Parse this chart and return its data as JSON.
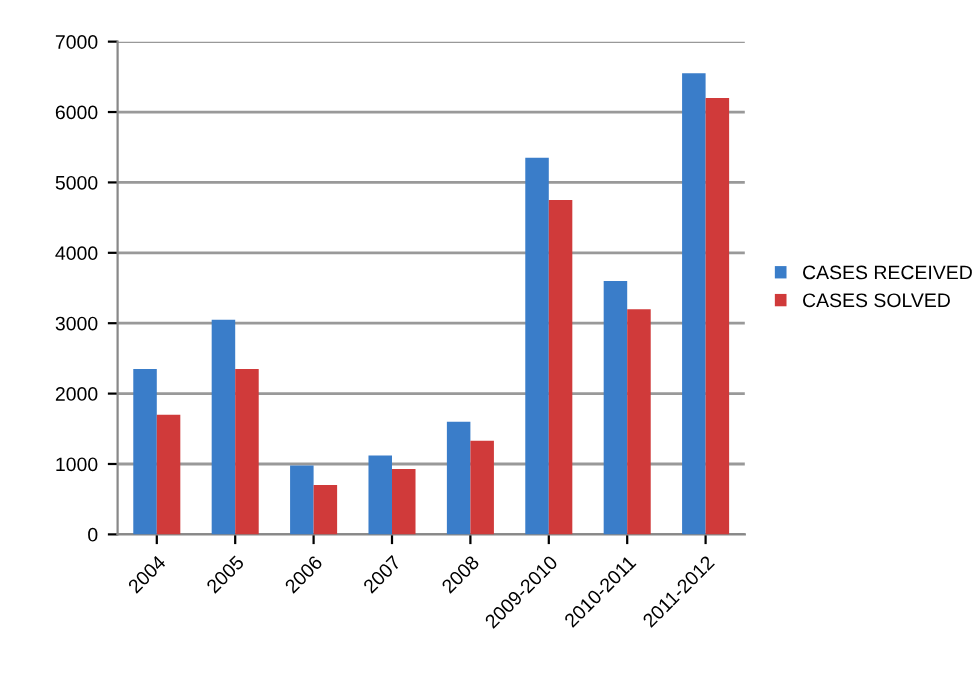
{
  "chart_data": {
    "type": "bar",
    "categories": [
      "2004",
      "2005",
      "2006",
      "2007",
      "2008",
      "2009-2010",
      "2010-2011",
      "2011-2012"
    ],
    "series": [
      {
        "name": "CASES RECEIVED",
        "color": "#3a7dc9",
        "values": [
          2350,
          3050,
          980,
          1120,
          1600,
          5350,
          3600,
          6550
        ]
      },
      {
        "name": "CASES SOLVED",
        "color": "#d03a3a",
        "values": [
          1700,
          2350,
          700,
          930,
          1330,
          4750,
          3200,
          6200
        ]
      }
    ],
    "ylim": [
      0,
      7000
    ],
    "yticks": [
      0,
      1000,
      2000,
      3000,
      4000,
      5000,
      6000,
      7000
    ],
    "grid": "y",
    "legend": "right"
  }
}
